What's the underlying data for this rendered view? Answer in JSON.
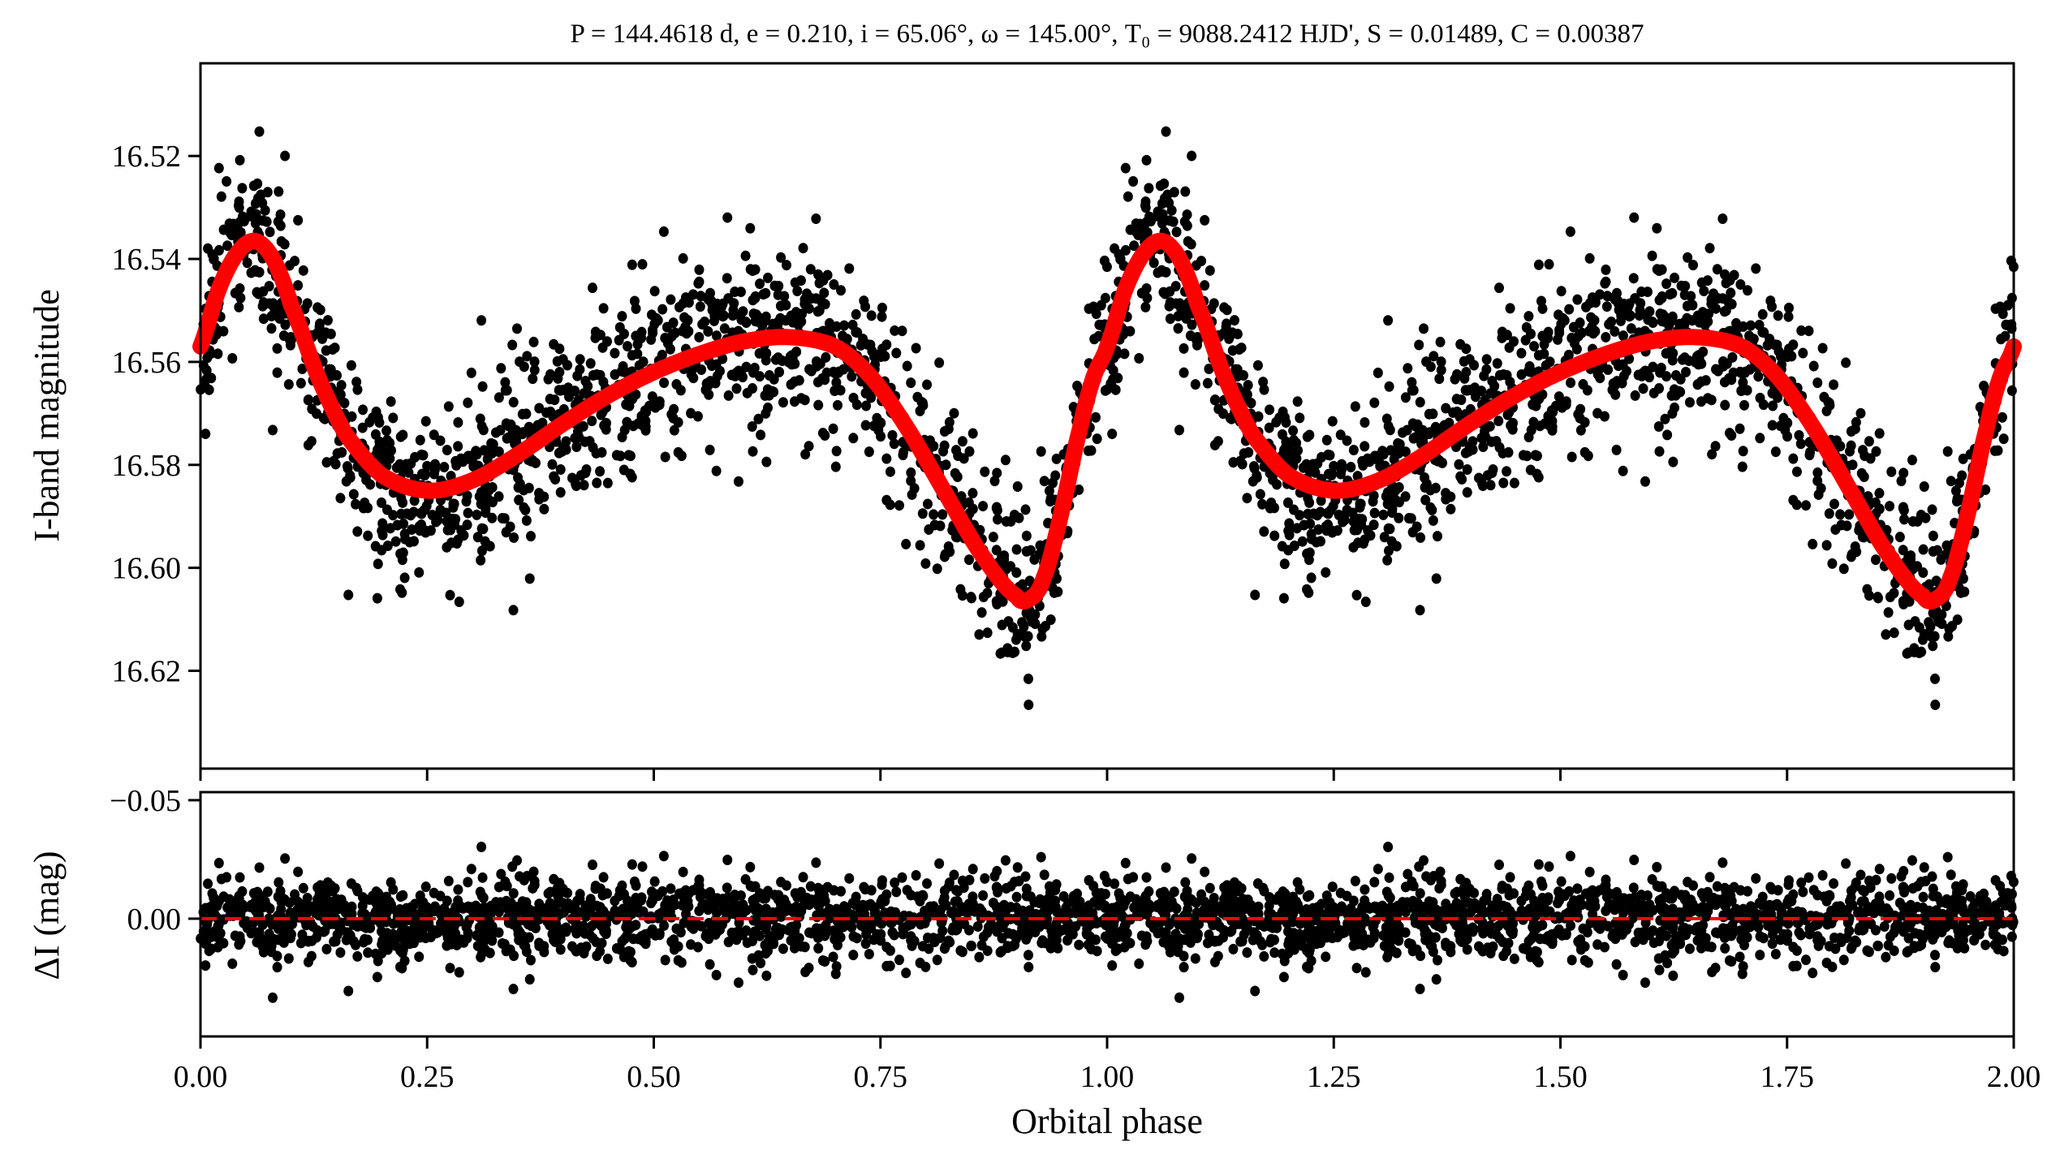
{
  "chart_data": [
    {
      "type": "scatter",
      "panel": "light-curve",
      "title": "P = 144.4618 d, e = 0.210, i = 65.06°, ω = 145.00°, T₀ = 9088.2412 HJD', S = 0.01489, C = 0.00387",
      "xlabel": "Orbital phase",
      "ylabel": "I-band magnitude",
      "xlim": [
        0.0,
        2.0
      ],
      "ylim": [
        16.639,
        16.502
      ],
      "y_inverted": true,
      "yticks": [
        "16.52",
        "16.54",
        "16.56",
        "16.58",
        "16.60",
        "16.62"
      ],
      "ytick_values": [
        16.52,
        16.54,
        16.56,
        16.58,
        16.6,
        16.62
      ],
      "xtick_values": [
        0.0,
        0.25,
        0.5,
        0.75,
        1.0,
        1.25,
        1.5,
        1.75,
        2.0
      ],
      "grid": false,
      "colors": {
        "points": "#000000",
        "model": "#ff0000"
      },
      "model_curve": {
        "name": "model",
        "phase": [
          0.0,
          0.02,
          0.04,
          0.06,
          0.08,
          0.1,
          0.13,
          0.16,
          0.2,
          0.25,
          0.3,
          0.35,
          0.4,
          0.45,
          0.5,
          0.55,
          0.6,
          0.65,
          0.7,
          0.74,
          0.78,
          0.82,
          0.86,
          0.9,
          0.915,
          0.93,
          0.95,
          0.97,
          0.985,
          1.0
        ],
        "mag": [
          16.557,
          16.546,
          16.539,
          16.5365,
          16.54,
          16.549,
          16.563,
          16.574,
          16.582,
          16.585,
          16.583,
          16.578,
          16.572,
          16.5665,
          16.562,
          16.5585,
          16.556,
          16.5552,
          16.557,
          16.563,
          16.573,
          16.585,
          16.597,
          16.6055,
          16.606,
          16.602,
          16.589,
          16.573,
          16.563,
          16.557
        ]
      },
      "observations": {
        "name": "observations",
        "points_per_cycle": 1400,
        "scatter_sigma_mag": 0.0085,
        "repeated_cycles": 2
      }
    },
    {
      "type": "scatter",
      "panel": "residuals",
      "xlabel": "Orbital phase",
      "ylabel": "ΔI (mag)",
      "xlim": [
        0.0,
        2.0
      ],
      "ylim": [
        0.0497,
        -0.0534
      ],
      "y_inverted": true,
      "yticks": [
        "−0.05",
        "0.00"
      ],
      "ytick_values": [
        -0.05,
        0.0
      ],
      "xticks": [
        "0.00",
        "0.25",
        "0.50",
        "0.75",
        "1.00",
        "1.25",
        "1.50",
        "1.75",
        "2.00"
      ],
      "xtick_values": [
        0.0,
        0.25,
        0.5,
        0.75,
        1.0,
        1.25,
        1.5,
        1.75,
        2.0
      ],
      "reference_line": {
        "y": 0.0,
        "style": "dashed",
        "color": "#ff0000"
      },
      "residual_sigma_mag": 0.0085
    }
  ]
}
